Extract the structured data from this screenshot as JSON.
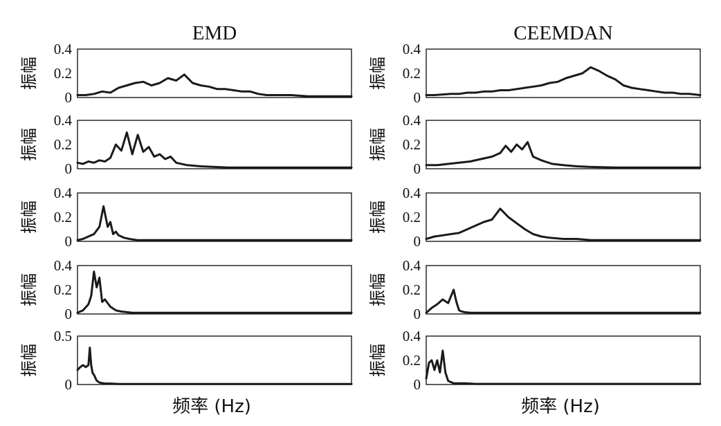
{
  "chart_data": [
    {
      "type": "line",
      "title": "EMD",
      "ylabel": "振幅",
      "xlabel": "",
      "ylim": [
        0,
        0.4
      ],
      "yticks": [
        "0",
        "0.2",
        "0.4"
      ],
      "x": [
        0,
        0.03,
        0.06,
        0.09,
        0.12,
        0.15,
        0.18,
        0.21,
        0.24,
        0.27,
        0.3,
        0.33,
        0.36,
        0.39,
        0.42,
        0.45,
        0.48,
        0.51,
        0.54,
        0.57,
        0.6,
        0.63,
        0.66,
        0.69,
        0.72,
        0.75,
        0.78,
        0.81,
        0.84,
        0.87,
        0.9,
        0.93,
        0.96,
        1.0
      ],
      "values": [
        0.02,
        0.02,
        0.03,
        0.05,
        0.04,
        0.08,
        0.1,
        0.12,
        0.13,
        0.1,
        0.12,
        0.16,
        0.14,
        0.19,
        0.12,
        0.1,
        0.09,
        0.07,
        0.07,
        0.06,
        0.05,
        0.05,
        0.03,
        0.02,
        0.02,
        0.02,
        0.02,
        0.015,
        0.01,
        0.01,
        0.01,
        0.01,
        0.01,
        0.01
      ]
    },
    {
      "type": "line",
      "title": "CEEMDAN",
      "ylabel": "振幅",
      "xlabel": "",
      "ylim": [
        0,
        0.4
      ],
      "yticks": [
        "0",
        "0.2",
        "0.4"
      ],
      "x": [
        0,
        0.03,
        0.06,
        0.09,
        0.12,
        0.15,
        0.18,
        0.21,
        0.24,
        0.27,
        0.3,
        0.33,
        0.36,
        0.39,
        0.42,
        0.45,
        0.48,
        0.51,
        0.54,
        0.57,
        0.6,
        0.63,
        0.66,
        0.69,
        0.72,
        0.75,
        0.78,
        0.81,
        0.84,
        0.87,
        0.9,
        0.93,
        0.96,
        1.0
      ],
      "values": [
        0.02,
        0.02,
        0.025,
        0.03,
        0.03,
        0.04,
        0.04,
        0.05,
        0.05,
        0.06,
        0.06,
        0.07,
        0.08,
        0.09,
        0.1,
        0.12,
        0.13,
        0.16,
        0.18,
        0.2,
        0.25,
        0.22,
        0.18,
        0.15,
        0.1,
        0.08,
        0.07,
        0.06,
        0.05,
        0.04,
        0.04,
        0.03,
        0.03,
        0.02
      ]
    },
    {
      "type": "line",
      "title": "",
      "ylabel": "振幅",
      "xlabel": "",
      "ylim": [
        0,
        0.4
      ],
      "yticks": [
        "0",
        "0.2",
        "0.4"
      ],
      "x": [
        0,
        0.02,
        0.04,
        0.06,
        0.08,
        0.1,
        0.12,
        0.14,
        0.16,
        0.18,
        0.2,
        0.22,
        0.24,
        0.26,
        0.28,
        0.3,
        0.32,
        0.34,
        0.36,
        0.4,
        0.45,
        0.5,
        0.55,
        0.6,
        0.7,
        0.8,
        0.9,
        1.0
      ],
      "values": [
        0.05,
        0.04,
        0.06,
        0.05,
        0.07,
        0.06,
        0.09,
        0.2,
        0.15,
        0.3,
        0.12,
        0.28,
        0.14,
        0.18,
        0.1,
        0.12,
        0.08,
        0.1,
        0.05,
        0.03,
        0.02,
        0.015,
        0.01,
        0.01,
        0.01,
        0.01,
        0.01,
        0.01
      ]
    },
    {
      "type": "line",
      "title": "",
      "ylabel": "振幅",
      "xlabel": "",
      "ylim": [
        0,
        0.4
      ],
      "yticks": [
        "0",
        "0.2",
        "0.4"
      ],
      "x": [
        0,
        0.04,
        0.08,
        0.12,
        0.16,
        0.2,
        0.24,
        0.27,
        0.29,
        0.31,
        0.33,
        0.35,
        0.37,
        0.39,
        0.42,
        0.46,
        0.5,
        0.55,
        0.6,
        0.7,
        0.8,
        0.9,
        1.0
      ],
      "values": [
        0.03,
        0.03,
        0.04,
        0.05,
        0.06,
        0.08,
        0.1,
        0.13,
        0.19,
        0.14,
        0.2,
        0.16,
        0.22,
        0.1,
        0.07,
        0.04,
        0.03,
        0.02,
        0.015,
        0.01,
        0.01,
        0.01,
        0.01
      ]
    },
    {
      "type": "line",
      "title": "",
      "ylabel": "振幅",
      "xlabel": "",
      "ylim": [
        0,
        0.4
      ],
      "yticks": [
        "0",
        "0.2",
        "0.4"
      ],
      "x": [
        0,
        0.02,
        0.04,
        0.06,
        0.08,
        0.095,
        0.11,
        0.12,
        0.13,
        0.14,
        0.15,
        0.17,
        0.19,
        0.22,
        0.26,
        0.3,
        0.4,
        0.5,
        0.6,
        0.7,
        0.8,
        0.9,
        1.0
      ],
      "values": [
        0.01,
        0.02,
        0.04,
        0.06,
        0.12,
        0.29,
        0.12,
        0.16,
        0.06,
        0.08,
        0.05,
        0.03,
        0.02,
        0.01,
        0.01,
        0.01,
        0.01,
        0.01,
        0.01,
        0.01,
        0.01,
        0.01,
        0.01
      ]
    },
    {
      "type": "line",
      "title": "",
      "ylabel": "振幅",
      "xlabel": "",
      "ylim": [
        0,
        0.4
      ],
      "yticks": [
        "0",
        "0.2",
        "0.4"
      ],
      "x": [
        0,
        0.03,
        0.06,
        0.09,
        0.12,
        0.15,
        0.18,
        0.21,
        0.24,
        0.27,
        0.3,
        0.33,
        0.36,
        0.39,
        0.42,
        0.45,
        0.5,
        0.55,
        0.6,
        0.7,
        0.8,
        0.9,
        1.0
      ],
      "values": [
        0.02,
        0.04,
        0.05,
        0.06,
        0.07,
        0.1,
        0.13,
        0.16,
        0.18,
        0.27,
        0.2,
        0.15,
        0.1,
        0.06,
        0.04,
        0.03,
        0.02,
        0.02,
        0.01,
        0.01,
        0.01,
        0.01,
        0.01
      ]
    },
    {
      "type": "line",
      "title": "",
      "ylabel": "振幅",
      "xlabel": "",
      "ylim": [
        0,
        0.4
      ],
      "yticks": [
        "0",
        "0.2",
        "0.4"
      ],
      "x": [
        0,
        0.02,
        0.04,
        0.05,
        0.06,
        0.07,
        0.08,
        0.09,
        0.1,
        0.12,
        0.14,
        0.16,
        0.2,
        0.25,
        0.3,
        0.4,
        0.5,
        0.6,
        0.7,
        0.8,
        0.9,
        1.0
      ],
      "values": [
        0.01,
        0.03,
        0.08,
        0.15,
        0.35,
        0.22,
        0.3,
        0.1,
        0.12,
        0.06,
        0.03,
        0.02,
        0.01,
        0.01,
        0.01,
        0.01,
        0.01,
        0.01,
        0.01,
        0.01,
        0.01,
        0.01
      ]
    },
    {
      "type": "line",
      "title": "",
      "ylabel": "振幅",
      "xlabel": "",
      "ylim": [
        0,
        0.4
      ],
      "yticks": [
        "0",
        "0.2",
        "0.4"
      ],
      "x": [
        0,
        0.02,
        0.04,
        0.06,
        0.08,
        0.1,
        0.11,
        0.12,
        0.13,
        0.14,
        0.16,
        0.2,
        0.25,
        0.3,
        0.4,
        0.5,
        0.6,
        0.7,
        0.8,
        0.9,
        1.0
      ],
      "values": [
        0.01,
        0.05,
        0.08,
        0.12,
        0.09,
        0.2,
        0.1,
        0.03,
        0.02,
        0.015,
        0.01,
        0.01,
        0.01,
        0.01,
        0.01,
        0.01,
        0.01,
        0.01,
        0.01,
        0.01,
        0.01
      ]
    },
    {
      "type": "line",
      "title": "",
      "ylabel": "振幅",
      "xlabel": "频率 (Hz)",
      "ylim": [
        0,
        0.5
      ],
      "yticks": [
        "0",
        "0.5"
      ],
      "x": [
        0,
        0.01,
        0.02,
        0.03,
        0.04,
        0.045,
        0.05,
        0.055,
        0.06,
        0.07,
        0.08,
        0.1,
        0.12,
        0.15,
        0.2,
        0.3,
        0.4,
        0.5,
        0.6,
        0.7,
        0.8,
        0.9,
        1.0
      ],
      "values": [
        0.15,
        0.18,
        0.2,
        0.18,
        0.2,
        0.38,
        0.2,
        0.12,
        0.1,
        0.04,
        0.02,
        0.01,
        0.01,
        0.005,
        0.005,
        0.005,
        0.005,
        0.005,
        0.005,
        0.005,
        0.005,
        0.005,
        0.005
      ]
    },
    {
      "type": "line",
      "title": "",
      "ylabel": "振幅",
      "xlabel": "频率 (Hz)",
      "ylim": [
        0,
        0.4
      ],
      "yticks": [
        "0",
        "0.2",
        "0.4"
      ],
      "x": [
        0,
        0.01,
        0.02,
        0.03,
        0.04,
        0.05,
        0.06,
        0.07,
        0.08,
        0.09,
        0.1,
        0.12,
        0.14,
        0.18,
        0.25,
        0.3,
        0.4,
        0.5,
        0.6,
        0.7,
        0.8,
        0.9,
        1.0
      ],
      "values": [
        0.05,
        0.18,
        0.2,
        0.12,
        0.2,
        0.1,
        0.28,
        0.1,
        0.03,
        0.02,
        0.01,
        0.01,
        0.01,
        0.005,
        0.005,
        0.005,
        0.005,
        0.005,
        0.005,
        0.005,
        0.005,
        0.005,
        0.005
      ]
    }
  ]
}
